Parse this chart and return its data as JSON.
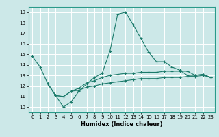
{
  "title": "",
  "xlabel": "Humidex (Indice chaleur)",
  "xlim": [
    -0.5,
    23.5
  ],
  "ylim": [
    9.5,
    19.5
  ],
  "yticks": [
    10,
    11,
    12,
    13,
    14,
    15,
    16,
    17,
    18,
    19
  ],
  "xticks": [
    0,
    1,
    2,
    3,
    4,
    5,
    6,
    7,
    8,
    9,
    10,
    11,
    12,
    13,
    14,
    15,
    16,
    17,
    18,
    19,
    20,
    21,
    22,
    23
  ],
  "bg_color": "#cce8e8",
  "grid_color": "#ffffff",
  "line_color": "#1a7a6a",
  "series": {
    "line1": {
      "x": [
        0,
        1,
        2,
        3,
        4,
        5,
        6,
        7,
        8,
        9,
        10,
        11,
        12,
        13,
        14,
        15,
        16,
        17,
        18,
        19,
        20,
        21,
        22,
        23
      ],
      "y": [
        14.8,
        13.8,
        12.2,
        11.1,
        10.0,
        10.5,
        11.5,
        12.2,
        12.8,
        13.2,
        15.3,
        18.8,
        19.0,
        17.8,
        16.5,
        15.2,
        14.3,
        14.3,
        13.8,
        13.5,
        13.0,
        13.0,
        13.1,
        12.8
      ]
    },
    "line2": {
      "x": [
        2,
        3,
        4,
        5,
        6,
        7,
        8,
        9,
        10,
        11,
        12,
        13,
        14,
        15,
        16,
        17,
        18,
        19,
        20,
        21,
        22,
        23
      ],
      "y": [
        12.2,
        11.1,
        11.0,
        11.5,
        11.8,
        12.3,
        12.5,
        12.8,
        13.0,
        13.1,
        13.2,
        13.2,
        13.3,
        13.3,
        13.3,
        13.4,
        13.4,
        13.4,
        13.4,
        13.0,
        13.1,
        12.8
      ]
    },
    "line3": {
      "x": [
        2,
        3,
        4,
        5,
        6,
        7,
        8,
        9,
        10,
        11,
        12,
        13,
        14,
        15,
        16,
        17,
        18,
        19,
        20,
        21,
        22,
        23
      ],
      "y": [
        12.2,
        11.1,
        11.0,
        11.5,
        11.6,
        11.9,
        12.0,
        12.2,
        12.3,
        12.4,
        12.5,
        12.6,
        12.7,
        12.7,
        12.7,
        12.8,
        12.8,
        12.8,
        12.9,
        12.9,
        13.0,
        12.8
      ]
    }
  }
}
